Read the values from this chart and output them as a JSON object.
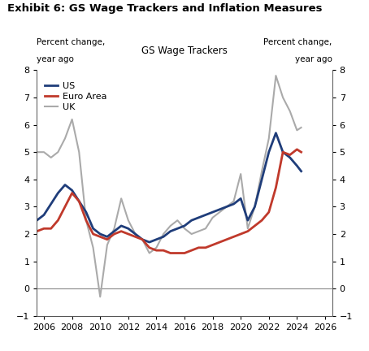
{
  "title": "Exhibit 6: GS Wage Trackers and Inflation Measures",
  "center_label": "GS Wage Trackers",
  "ylim": [
    -1,
    8
  ],
  "yticks": [
    -1,
    0,
    1,
    2,
    3,
    4,
    5,
    6,
    7,
    8
  ],
  "xlim": [
    2005.5,
    2026.5
  ],
  "xticks": [
    2006,
    2008,
    2010,
    2012,
    2014,
    2016,
    2018,
    2020,
    2022,
    2024,
    2026
  ],
  "colors": {
    "US": "#1f3d7a",
    "EuroArea": "#c0392b",
    "UK": "#aaaaaa"
  },
  "US_x": [
    2005.5,
    2006.0,
    2006.5,
    2007.0,
    2007.5,
    2008.0,
    2008.5,
    2009.0,
    2009.5,
    2010.0,
    2010.5,
    2011.0,
    2011.5,
    2012.0,
    2012.5,
    2013.0,
    2013.5,
    2014.0,
    2014.5,
    2015.0,
    2015.5,
    2016.0,
    2016.5,
    2017.0,
    2017.5,
    2018.0,
    2018.5,
    2019.0,
    2019.5,
    2020.0,
    2020.5,
    2021.0,
    2021.5,
    2022.0,
    2022.5,
    2023.0,
    2023.5,
    2024.0,
    2024.3
  ],
  "US_y": [
    2.5,
    2.7,
    3.1,
    3.5,
    3.8,
    3.6,
    3.2,
    2.8,
    2.2,
    2.0,
    1.9,
    2.1,
    2.3,
    2.2,
    2.0,
    1.8,
    1.7,
    1.8,
    1.9,
    2.1,
    2.2,
    2.3,
    2.5,
    2.6,
    2.7,
    2.8,
    2.9,
    3.0,
    3.1,
    3.3,
    2.5,
    3.0,
    4.0,
    5.0,
    5.7,
    5.0,
    4.8,
    4.5,
    4.3
  ],
  "EA_x": [
    2005.5,
    2006.0,
    2006.5,
    2007.0,
    2007.5,
    2008.0,
    2008.5,
    2009.0,
    2009.5,
    2010.0,
    2010.5,
    2011.0,
    2011.5,
    2012.0,
    2012.5,
    2013.0,
    2013.5,
    2014.0,
    2014.5,
    2015.0,
    2015.5,
    2016.0,
    2016.5,
    2017.0,
    2017.5,
    2018.0,
    2018.5,
    2019.0,
    2019.5,
    2020.0,
    2020.5,
    2021.0,
    2021.5,
    2022.0,
    2022.5,
    2023.0,
    2023.5,
    2024.0,
    2024.3
  ],
  "EA_y": [
    2.1,
    2.2,
    2.2,
    2.5,
    3.0,
    3.5,
    3.2,
    2.5,
    2.0,
    1.9,
    1.8,
    2.0,
    2.1,
    2.0,
    1.9,
    1.8,
    1.5,
    1.4,
    1.4,
    1.3,
    1.3,
    1.3,
    1.4,
    1.5,
    1.5,
    1.6,
    1.7,
    1.8,
    1.9,
    2.0,
    2.1,
    2.3,
    2.5,
    2.8,
    3.7,
    5.0,
    4.9,
    5.1,
    5.0
  ],
  "UK_x": [
    2005.5,
    2006.0,
    2006.5,
    2007.0,
    2007.5,
    2008.0,
    2008.5,
    2009.0,
    2009.5,
    2010.0,
    2010.5,
    2011.0,
    2011.5,
    2012.0,
    2012.5,
    2013.0,
    2013.5,
    2014.0,
    2014.5,
    2015.0,
    2015.5,
    2016.0,
    2016.5,
    2017.0,
    2017.5,
    2018.0,
    2018.5,
    2019.0,
    2019.5,
    2020.0,
    2020.5,
    2021.0,
    2021.5,
    2022.0,
    2022.5,
    2023.0,
    2023.5,
    2024.0,
    2024.3
  ],
  "UK_y": [
    5.0,
    5.0,
    4.8,
    5.0,
    5.5,
    6.2,
    5.0,
    2.5,
    1.5,
    -0.3,
    1.6,
    2.2,
    3.3,
    2.5,
    2.0,
    1.8,
    1.3,
    1.5,
    2.0,
    2.3,
    2.5,
    2.2,
    2.0,
    2.1,
    2.2,
    2.6,
    2.8,
    3.0,
    3.2,
    4.2,
    2.2,
    3.0,
    4.3,
    5.5,
    7.8,
    7.0,
    6.5,
    5.8,
    5.9
  ]
}
